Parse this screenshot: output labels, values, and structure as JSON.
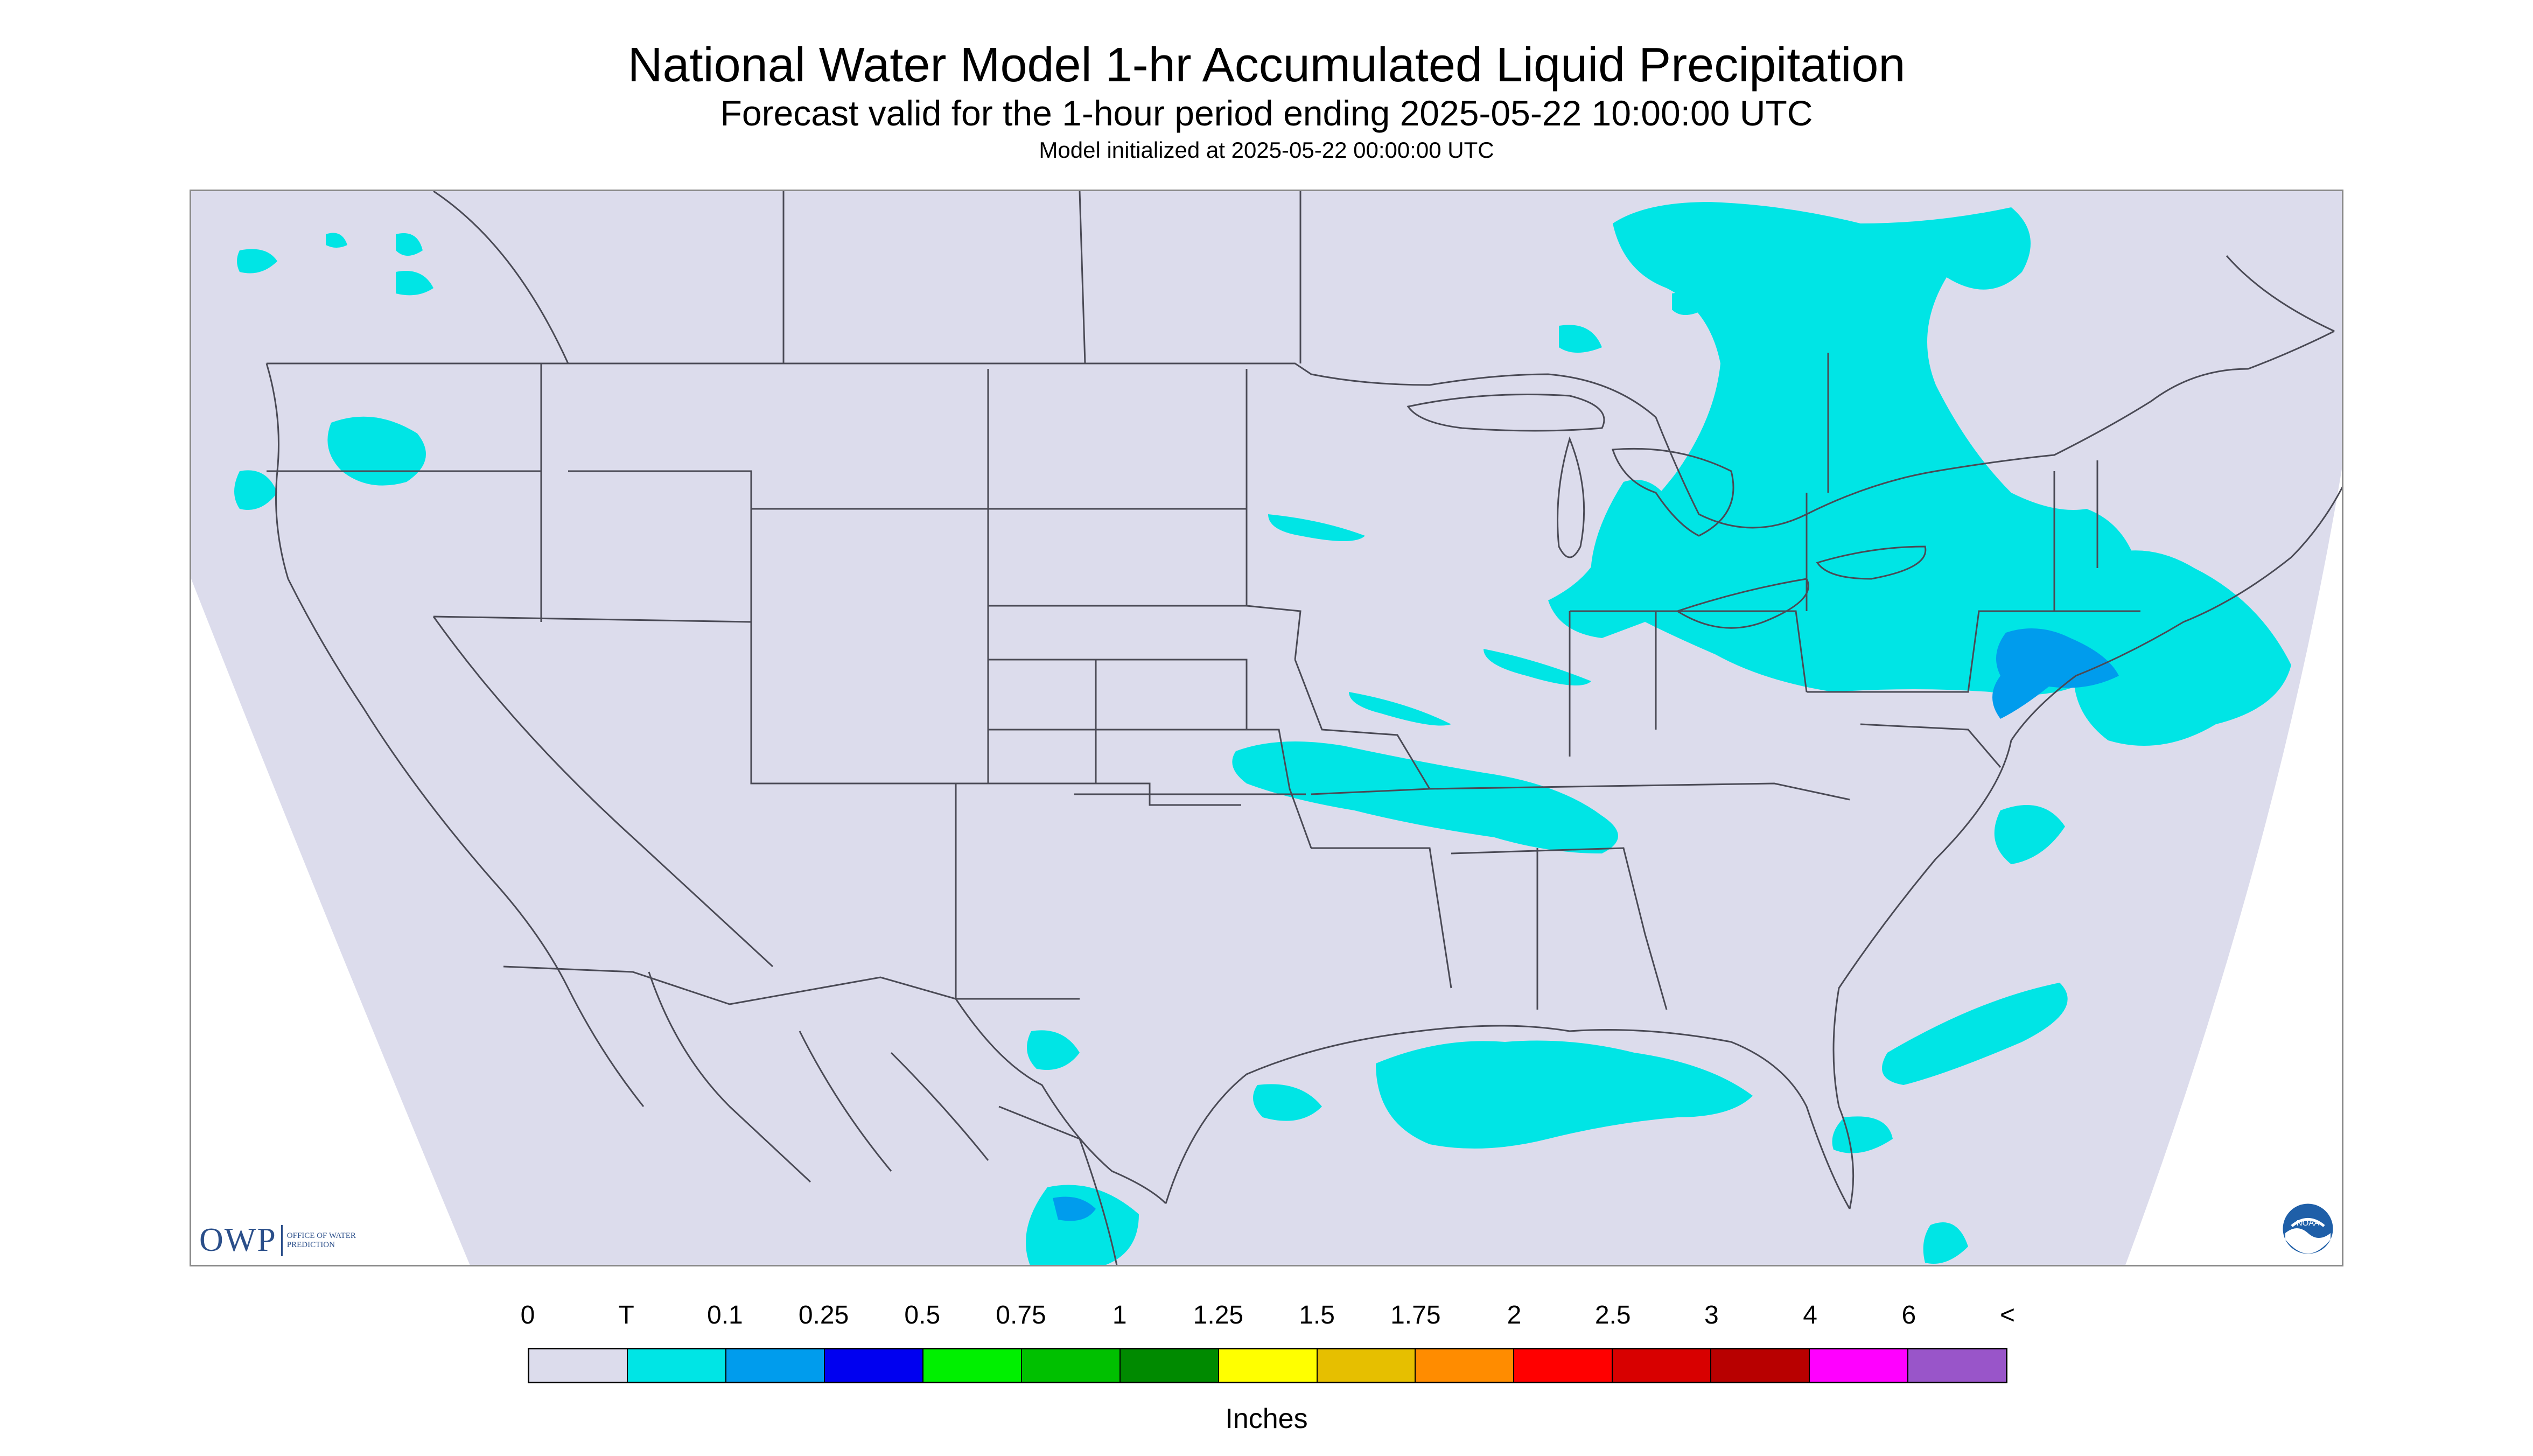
{
  "header": {
    "title": "National Water Model 1-hr Accumulated Liquid Precipitation",
    "subtitle": "Forecast valid for the 1-hour period ending 2025-05-22 10:00:00 UTC",
    "init_line": "Model initialized at 2025-05-22 00:00:00 UTC"
  },
  "map": {
    "region": "Continental United States",
    "background_color": "#dcdcec",
    "border_color": "#4a4a55",
    "precip_regions": [
      {
        "area": "Northern Great Lakes / Ontario",
        "category": "T"
      },
      {
        "area": "Michigan / Lake Huron / Lake Erie",
        "category": "T"
      },
      {
        "area": "Pennsylvania / New York",
        "category": "T"
      },
      {
        "area": "New Jersey / New York City area",
        "category": "0.1"
      },
      {
        "area": "New England / Southern New England coast",
        "category": "T"
      },
      {
        "area": "Kansas / Missouri / Arkansas / Tennessee band",
        "category": "T"
      },
      {
        "area": "Gulf of Mexico off Louisiana / Mississippi",
        "category": "T"
      },
      {
        "area": "Western Atlantic off Southeast coast",
        "category": "T"
      },
      {
        "area": "Pacific Northwest (Washington / Oregon)",
        "category": "T"
      },
      {
        "area": "Southern Texas / Northeastern Mexico",
        "category": "T"
      },
      {
        "area": "Eastern Mexico coast",
        "category": "0.1"
      }
    ]
  },
  "logos": {
    "owp_letters": "OWP",
    "owp_text": "OFFICE OF WATER PREDICTION",
    "noaa_text": "NOAA"
  },
  "legend": {
    "labels": [
      "0",
      "T",
      "0.1",
      "0.25",
      "0.5",
      "0.75",
      "1",
      "1.25",
      "1.5",
      "1.75",
      "2",
      "2.5",
      "3",
      "4",
      "6",
      "<"
    ],
    "colors": [
      "#dcdcec",
      "#00e5e5",
      "#009ced",
      "#0000f0",
      "#00f000",
      "#00c000",
      "#008a00",
      "#ffff00",
      "#e6bf00",
      "#ff8c00",
      "#ff0000",
      "#d80000",
      "#b80000",
      "#ff00ff",
      "#9955c9"
    ],
    "units": "Inches"
  }
}
